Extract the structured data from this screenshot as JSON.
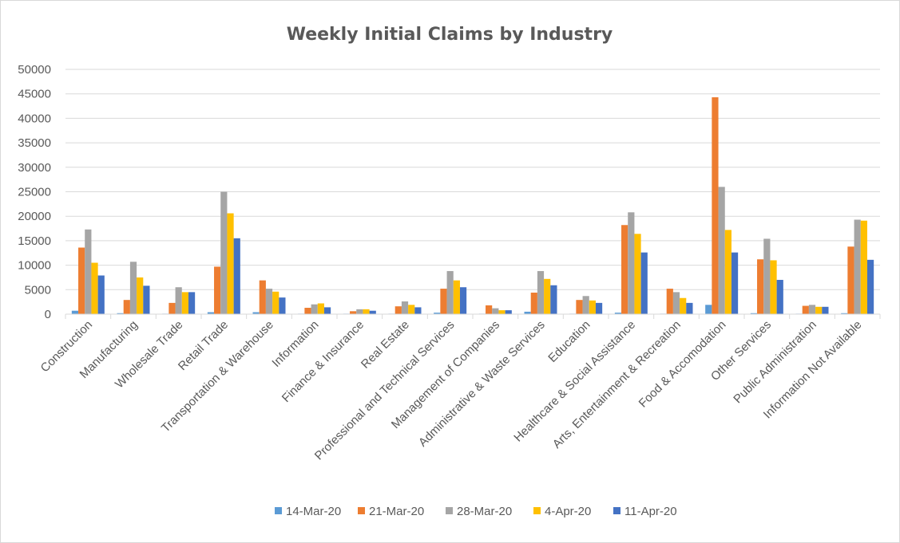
{
  "chart_data": {
    "type": "bar",
    "title": "Weekly Initial Claims by Industry",
    "xlabel": "",
    "ylabel": "",
    "ylim": [
      0,
      50000
    ],
    "yticks": [
      "0",
      "5000",
      "10000",
      "15000",
      "20000",
      "25000",
      "30000",
      "35000",
      "40000",
      "45000",
      "50000"
    ],
    "grid": true,
    "legend_position": "bottom",
    "categories": [
      "Construction",
      "Manufacturing",
      "Wholesale Trade",
      "Retail Trade",
      "Transportation & Warehouse",
      "Information",
      "Finance & Insurance",
      "Real Estate",
      "Professional and Technical Services",
      "Management of Companies",
      "Administrative & Waste Services",
      "Education",
      "Healthcare & Social Assistance",
      "Arts, Entertainment & Recreation",
      "Food & Accomodation",
      "Other Services",
      "Public Administration",
      "Information Not Available"
    ],
    "series": [
      {
        "name": "14-Mar-20",
        "color": "#5b9bd5",
        "values": [
          700,
          200,
          100,
          400,
          400,
          100,
          100,
          100,
          300,
          100,
          500,
          100,
          300,
          100,
          1900,
          200,
          100,
          200
        ]
      },
      {
        "name": "21-Mar-20",
        "color": "#ed7d31",
        "values": [
          13600,
          2900,
          2300,
          9700,
          6900,
          1300,
          600,
          1600,
          5200,
          1800,
          4400,
          2900,
          18200,
          5200,
          44300,
          11200,
          1700,
          13800
        ]
      },
      {
        "name": "28-Mar-20",
        "color": "#a5a5a5",
        "values": [
          17300,
          10700,
          5500,
          25000,
          5200,
          2000,
          1000,
          2600,
          8800,
          1200,
          8800,
          3700,
          20800,
          4500,
          26000,
          15400,
          1900,
          19300
        ]
      },
      {
        "name": "4-Apr-20",
        "color": "#ffc000",
        "values": [
          10500,
          7500,
          4500,
          20600,
          4600,
          2200,
          1000,
          1900,
          6900,
          800,
          7200,
          2800,
          16400,
          3300,
          17200,
          11000,
          1500,
          19100
        ]
      },
      {
        "name": "11-Apr-20",
        "color": "#4472c4",
        "values": [
          7900,
          5800,
          4500,
          15500,
          3400,
          1400,
          700,
          1400,
          5500,
          800,
          5900,
          2300,
          12600,
          2300,
          12600,
          7000,
          1500,
          11100
        ]
      }
    ]
  }
}
